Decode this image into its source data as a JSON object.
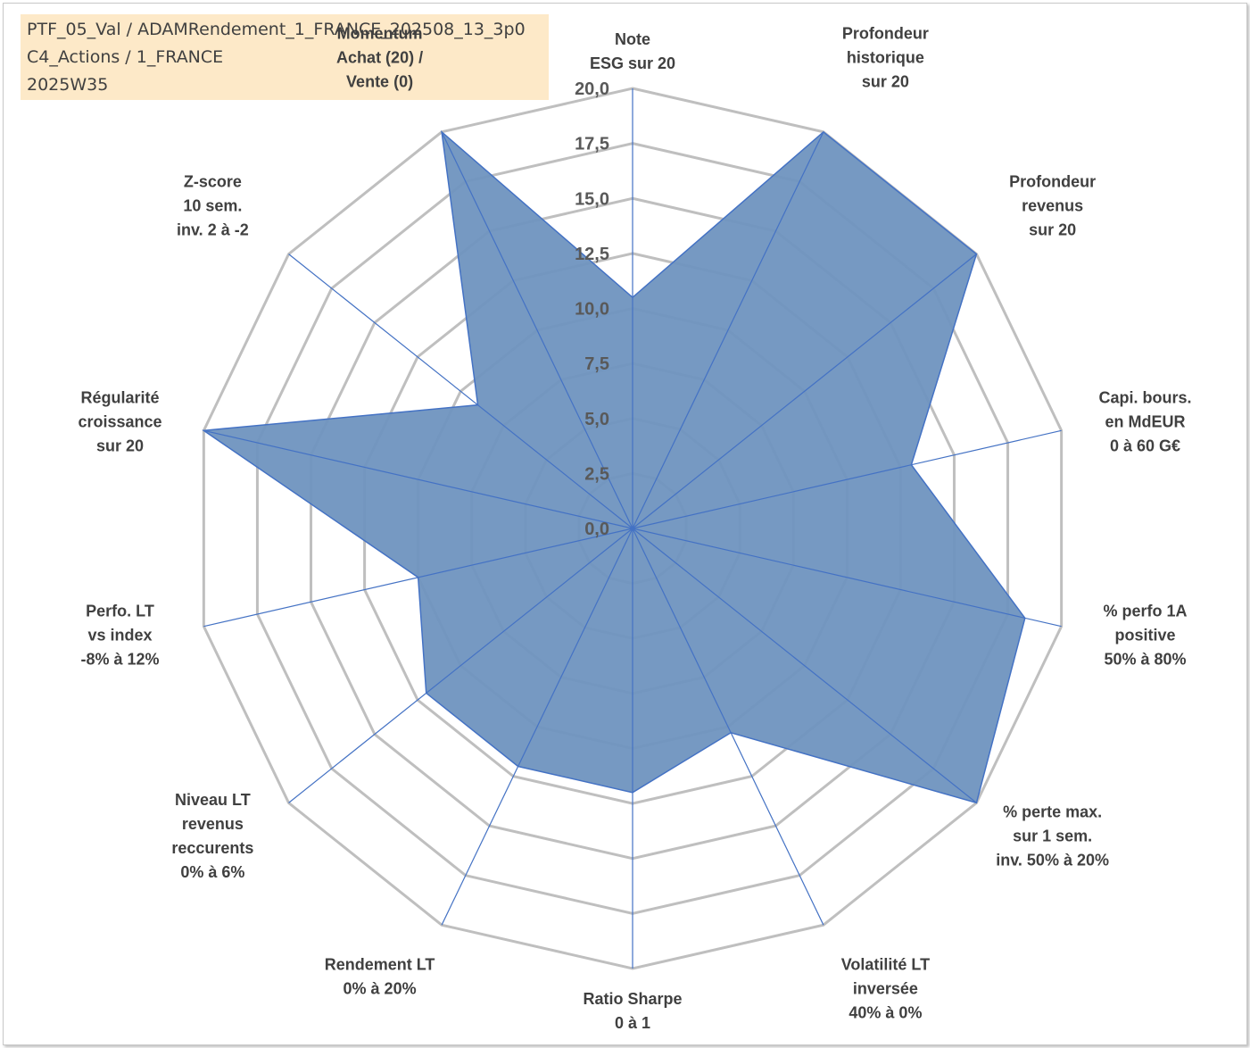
{
  "header": {
    "line1": "PTF_05_Val / ADAMRendement_1_FRANCE_202508_13_3p0",
    "line2": "C4_Actions / 1_FRANCE",
    "line3": "2025W35"
  },
  "colors": {
    "fill": "#6f94bf",
    "stroke": "#4472c4",
    "grid": "#bfbfbf",
    "header_bg": "#fde9c8",
    "momentum": "#b8a88a"
  },
  "chart_data": {
    "type": "radar",
    "rmin": 0,
    "rmax": 20,
    "ticks": [
      "0,0",
      "2,5",
      "5,0",
      "7,5",
      "10,0",
      "12,5",
      "15,0",
      "17,5",
      "20,0"
    ],
    "axes": [
      {
        "lines": [
          "Note",
          "ESG sur 20"
        ]
      },
      {
        "lines": [
          "Profondeur",
          "historique",
          "sur 20"
        ]
      },
      {
        "lines": [
          "Profondeur",
          "revenus",
          "sur 20"
        ]
      },
      {
        "lines": [
          "Capi. bours.",
          "en MdEUR",
          "0 à 60 G€"
        ]
      },
      {
        "lines": [
          "% perfo 1A",
          "positive",
          "50% à 80%"
        ]
      },
      {
        "lines": [
          "% perte max.",
          "sur 1 sem.",
          "inv. 50% à 20%"
        ]
      },
      {
        "lines": [
          "Volatilité LT",
          "inversée",
          "40% à 0%"
        ]
      },
      {
        "lines": [
          "Ratio Sharpe",
          "0 à 1"
        ]
      },
      {
        "lines": [
          "Rendement LT",
          "0% à 20%"
        ]
      },
      {
        "lines": [
          "Niveau LT",
          "revenus",
          "reccurents",
          "0% à 6%"
        ]
      },
      {
        "lines": [
          "Perfo. LT",
          "vs index",
          "-8% à 12%"
        ]
      },
      {
        "lines": [
          "Régularité",
          "croissance",
          "sur 20"
        ]
      },
      {
        "lines": [
          "Z-score",
          "10 sem.",
          "inv. 2 à -2"
        ]
      },
      {
        "lines": [
          "Momentum",
          "Achat (20) /",
          "Vente (0)"
        ]
      }
    ],
    "series": [
      {
        "values": [
          10.5,
          20,
          20,
          13,
          18.3,
          20,
          10.3,
          12,
          12,
          12,
          10,
          20,
          9,
          20
        ]
      }
    ]
  }
}
